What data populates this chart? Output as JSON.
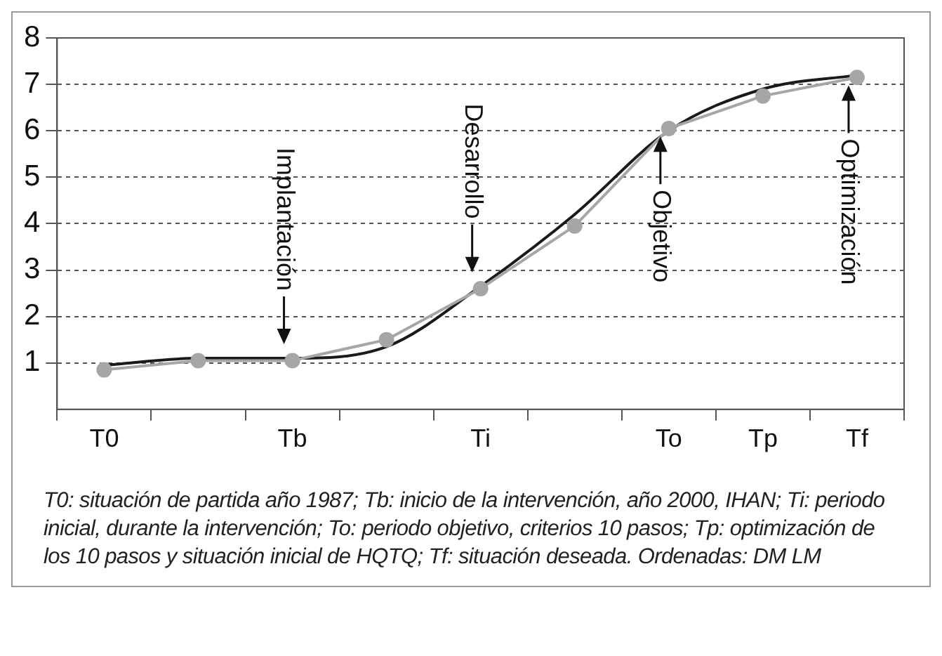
{
  "chart_data": {
    "type": "line",
    "categories": [
      "T0",
      null,
      "Tb",
      null,
      "Ti",
      null,
      "To",
      "Tp",
      "Tf"
    ],
    "series": [
      {
        "color": "#a6a6a6",
        "marker": "circle",
        "values": [
          0.85,
          1.05,
          1.05,
          1.5,
          2.6,
          3.95,
          6.05,
          6.75,
          7.15
        ]
      },
      {
        "type": "line",
        "color": "#1a1a1a",
        "marker": "none",
        "values": [
          0.95,
          1.1,
          1.1,
          1.35,
          2.65,
          4.2,
          6.0,
          6.9,
          7.2
        ]
      }
    ],
    "ylim": [
      0,
      8
    ],
    "yticks": [
      1,
      2,
      3,
      4,
      5,
      6,
      7,
      8
    ],
    "grid": "y",
    "legend": false,
    "annotations": [
      {
        "text": "Implantación",
        "x": "Tb",
        "y": 1.1
      },
      {
        "text": "Desarrollo",
        "x": "Ti",
        "y": 2.65
      },
      {
        "text": "Objetivo",
        "x": "To",
        "y": 6.0
      },
      {
        "text": "Optimización",
        "x": "Tf",
        "y": 7.1
      },
      "T0: situación de partida año 1987; Tb: inicio de la intervención, año 2000, IHAN; Ti: periodo inicial, durante la intervención; To: periodo objetivo, criterios 10 pasos; Tp: optimización de los 10 pasos y situación inicial de HQTQ; Tf: situación deseada.  Ordenadas: DM LM"
    ]
  }
}
